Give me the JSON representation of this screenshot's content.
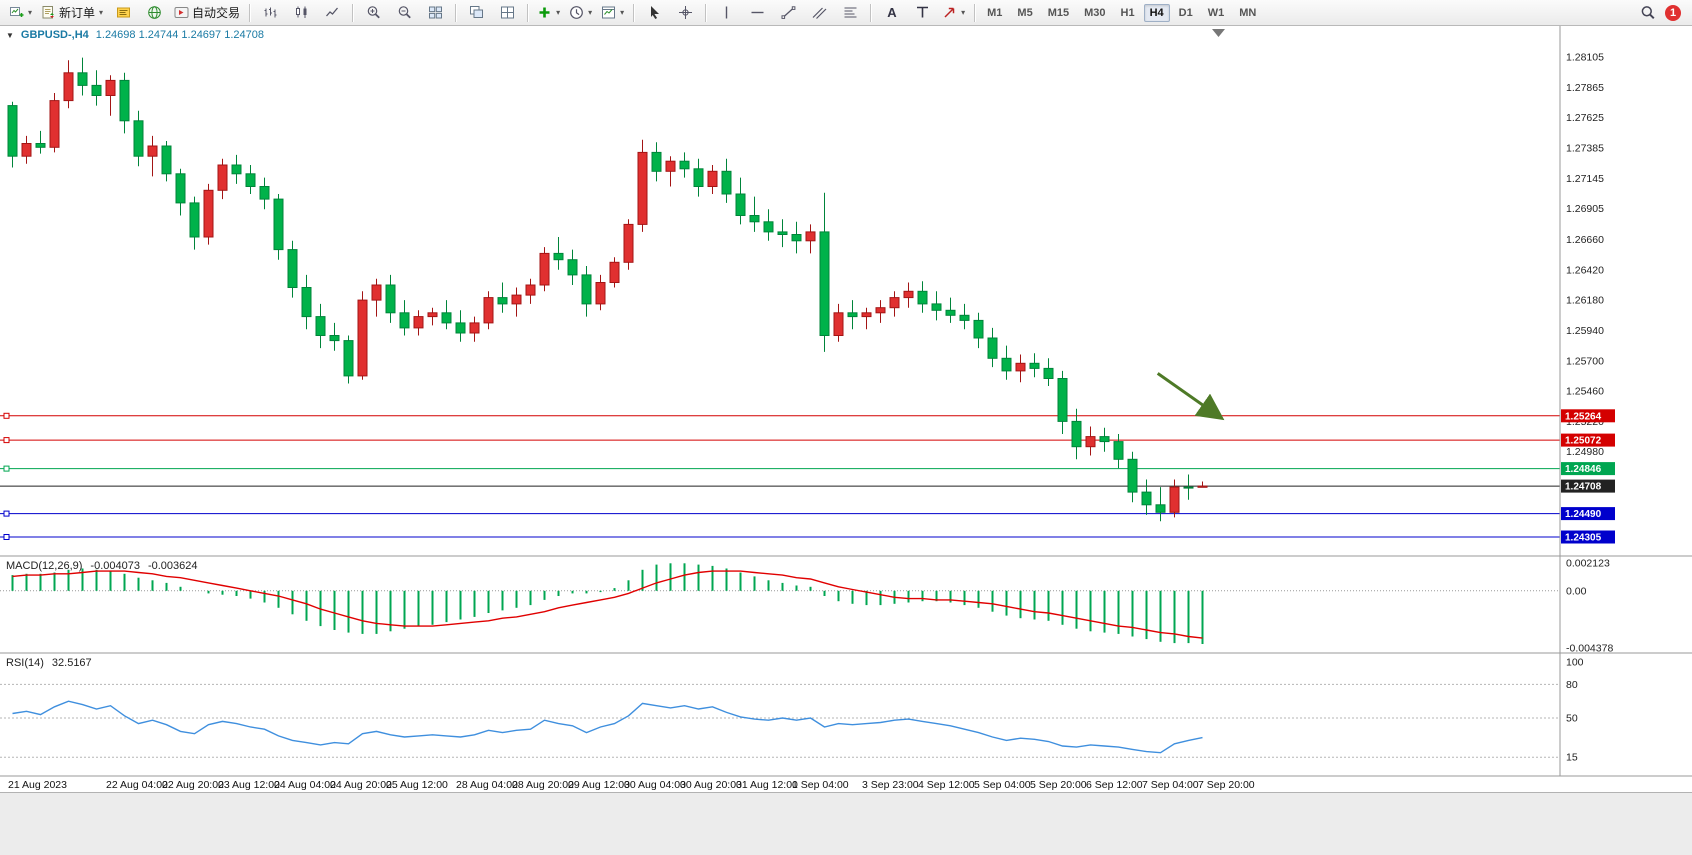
{
  "chart": {
    "symbol_period": "GBPUSD-,H4",
    "ohlc": "1.24698 1.24744 1.24697 1.24708"
  },
  "toolbar": {
    "badge": "1",
    "groups": [
      {
        "name": "trade",
        "items": [
          {
            "name": "new-chart",
            "icon": "chart-plus",
            "dropdown": true
          },
          {
            "name": "new-order",
            "icon": "new-order",
            "label": "新订单",
            "dropdown": true
          },
          {
            "name": "metaeditor",
            "icon": "editor"
          },
          {
            "name": "market-watch",
            "icon": "globe"
          },
          {
            "name": "auto-trading",
            "icon": "autotrade",
            "label": "自动交易"
          }
        ]
      },
      {
        "name": "chart-mode",
        "items": [
          {
            "name": "ohlc-bars-mode",
            "icon": "ohlc"
          },
          {
            "name": "candlestick-mode",
            "icon": "candles"
          },
          {
            "name": "line-chart-mode",
            "icon": "linechart"
          }
        ]
      },
      {
        "name": "zoom",
        "items": [
          {
            "name": "zoom-in",
            "icon": "zoom-in"
          },
          {
            "name": "zoom-out",
            "icon": "zoom-out"
          },
          {
            "name": "arrange-windows",
            "icon": "grid"
          }
        ]
      },
      {
        "name": "windows",
        "items": [
          {
            "name": "cascade-windows",
            "icon": "cascade"
          },
          {
            "name": "tile-windows",
            "icon": "tile"
          }
        ]
      },
      {
        "name": "chart-tools",
        "items": [
          {
            "name": "indicators",
            "icon": "indicator-plus",
            "dropdown": true
          },
          {
            "name": "periods",
            "icon": "clock",
            "dropdown": true
          },
          {
            "name": "templates",
            "icon": "template",
            "dropdown": true
          }
        ]
      },
      {
        "name": "pointer",
        "items": [
          {
            "name": "cursor",
            "icon": "cursor"
          },
          {
            "name": "crosshair",
            "icon": "crosshair"
          }
        ]
      },
      {
        "name": "objects",
        "items": [
          {
            "name": "vertical-line-tool",
            "icon": "vline"
          },
          {
            "name": "horizontal-line-tool",
            "icon": "hline"
          },
          {
            "name": "trendline-tool",
            "icon": "trendline"
          },
          {
            "name": "equidistant-channel-tool",
            "icon": "channel"
          },
          {
            "name": "fibonacci-tool",
            "icon": "fibo"
          }
        ]
      },
      {
        "name": "text-objects",
        "items": [
          {
            "name": "text-tool",
            "icon": "text-a"
          },
          {
            "name": "text-label-tool",
            "icon": "label-t"
          },
          {
            "name": "arrow-objects",
            "icon": "arrow-obj",
            "dropdown": true
          }
        ]
      }
    ],
    "timeframes": [
      {
        "label": "M1"
      },
      {
        "label": "M5"
      },
      {
        "label": "M15"
      },
      {
        "label": "M30"
      },
      {
        "label": "H1"
      },
      {
        "label": "H4",
        "active": true
      },
      {
        "label": "D1"
      },
      {
        "label": "W1"
      },
      {
        "label": "MN"
      }
    ]
  },
  "chart_data": {
    "type": "candlestick",
    "symbol": "GBPUSD",
    "period": "H4",
    "main": {
      "up_color": "#e03030",
      "up_border": "#a31515",
      "down_color": "#00b24a",
      "down_border": "#00843a",
      "axis_labels": [
        "1.28105",
        "1.27865",
        "1.27625",
        "1.27385",
        "1.27145",
        "1.26905",
        "1.26660",
        "1.26420",
        "1.26180",
        "1.25940",
        "1.25700",
        "1.25460",
        "1.25220",
        "1.24980"
      ],
      "hlines": [
        {
          "price": 1.25264,
          "label": "1.25264",
          "color": "#d40000",
          "kind": "resistance"
        },
        {
          "price": 1.25072,
          "label": "1.25072",
          "color": "#d40000",
          "kind": "resistance"
        },
        {
          "price": 1.24846,
          "label": "1.24846",
          "color": "#00a651",
          "kind": "level"
        },
        {
          "price": 1.24708,
          "label": "1.24708",
          "color": "#222222",
          "kind": "bid"
        },
        {
          "price": 1.2449,
          "label": "1.24490",
          "color": "#0000cc",
          "kind": "support"
        },
        {
          "price": 1.24305,
          "label": "1.24305",
          "color": "#0000cc",
          "kind": "support"
        }
      ],
      "candles": [
        [
          1.2772,
          1.2775,
          1.2723,
          1.2732
        ],
        [
          1.2732,
          1.2748,
          1.2726,
          1.2742
        ],
        [
          1.2742,
          1.2752,
          1.2734,
          1.2739
        ],
        [
          1.2739,
          1.2782,
          1.2735,
          1.2776
        ],
        [
          1.2776,
          1.2808,
          1.277,
          1.2798
        ],
        [
          1.2798,
          1.281,
          1.278,
          1.2788
        ],
        [
          1.2788,
          1.28,
          1.2772,
          1.278
        ],
        [
          1.278,
          1.2796,
          1.2764,
          1.2792
        ],
        [
          1.2792,
          1.2798,
          1.275,
          1.276
        ],
        [
          1.276,
          1.2768,
          1.2724,
          1.2732
        ],
        [
          1.2732,
          1.2748,
          1.2716,
          1.274
        ],
        [
          1.274,
          1.2744,
          1.2712,
          1.2718
        ],
        [
          1.2718,
          1.2722,
          1.2685,
          1.2695
        ],
        [
          1.2695,
          1.27,
          1.2658,
          1.2668
        ],
        [
          1.2668,
          1.271,
          1.2662,
          1.2705
        ],
        [
          1.2705,
          1.273,
          1.2698,
          1.2725
        ],
        [
          1.2725,
          1.2733,
          1.271,
          1.2718
        ],
        [
          1.2718,
          1.2725,
          1.2702,
          1.2708
        ],
        [
          1.2708,
          1.2715,
          1.269,
          1.2698
        ],
        [
          1.2698,
          1.2702,
          1.265,
          1.2658
        ],
        [
          1.2658,
          1.2665,
          1.262,
          1.2628
        ],
        [
          1.2628,
          1.2638,
          1.2595,
          1.2605
        ],
        [
          1.2605,
          1.2615,
          1.258,
          1.259
        ],
        [
          1.259,
          1.26,
          1.2578,
          1.2586
        ],
        [
          1.2586,
          1.259,
          1.2552,
          1.2558
        ],
        [
          1.2558,
          1.2625,
          1.2555,
          1.2618
        ],
        [
          1.2618,
          1.2635,
          1.2605,
          1.263
        ],
        [
          1.263,
          1.2638,
          1.26,
          1.2608
        ],
        [
          1.2608,
          1.2618,
          1.259,
          1.2596
        ],
        [
          1.2596,
          1.261,
          1.259,
          1.2605
        ],
        [
          1.2605,
          1.2612,
          1.2598,
          1.2608
        ],
        [
          1.2608,
          1.2618,
          1.2595,
          1.26
        ],
        [
          1.26,
          1.261,
          1.2585,
          1.2592
        ],
        [
          1.2592,
          1.2605,
          1.2585,
          1.26
        ],
        [
          1.26,
          1.2625,
          1.2595,
          1.262
        ],
        [
          1.262,
          1.2632,
          1.2608,
          1.2615
        ],
        [
          1.2615,
          1.2628,
          1.2605,
          1.2622
        ],
        [
          1.2622,
          1.2635,
          1.2615,
          1.263
        ],
        [
          1.263,
          1.266,
          1.2625,
          1.2655
        ],
        [
          1.2655,
          1.2668,
          1.2642,
          1.265
        ],
        [
          1.265,
          1.2658,
          1.263,
          1.2638
        ],
        [
          1.2638,
          1.2645,
          1.2605,
          1.2615
        ],
        [
          1.2615,
          1.2638,
          1.261,
          1.2632
        ],
        [
          1.2632,
          1.2652,
          1.2628,
          1.2648
        ],
        [
          1.2648,
          1.2682,
          1.2642,
          1.2678
        ],
        [
          1.2678,
          1.2745,
          1.2672,
          1.2735
        ],
        [
          1.2735,
          1.2743,
          1.2712,
          1.272
        ],
        [
          1.272,
          1.2732,
          1.2708,
          1.2728
        ],
        [
          1.2728,
          1.2735,
          1.2715,
          1.2722
        ],
        [
          1.2722,
          1.273,
          1.27,
          1.2708
        ],
        [
          1.2708,
          1.2725,
          1.2702,
          1.272
        ],
        [
          1.272,
          1.273,
          1.2695,
          1.2702
        ],
        [
          1.2702,
          1.2715,
          1.2678,
          1.2685
        ],
        [
          1.2685,
          1.27,
          1.2672,
          1.268
        ],
        [
          1.268,
          1.269,
          1.2665,
          1.2672
        ],
        [
          1.2672,
          1.2682,
          1.266,
          1.267
        ],
        [
          1.267,
          1.268,
          1.2655,
          1.2665
        ],
        [
          1.2665,
          1.2678,
          1.2655,
          1.2672
        ],
        [
          1.2672,
          1.2703,
          1.2577,
          1.259
        ],
        [
          1.259,
          1.2615,
          1.2585,
          1.2608
        ],
        [
          1.2608,
          1.2618,
          1.2595,
          1.2605
        ],
        [
          1.2605,
          1.2612,
          1.2595,
          1.2608
        ],
        [
          1.2608,
          1.2618,
          1.26,
          1.2612
        ],
        [
          1.2612,
          1.2625,
          1.2605,
          1.262
        ],
        [
          1.262,
          1.2632,
          1.2612,
          1.2625
        ],
        [
          1.2625,
          1.2633,
          1.2608,
          1.2615
        ],
        [
          1.2615,
          1.2625,
          1.2602,
          1.261
        ],
        [
          1.261,
          1.262,
          1.26,
          1.2606
        ],
        [
          1.2606,
          1.2615,
          1.2595,
          1.2602
        ],
        [
          1.2602,
          1.2608,
          1.258,
          1.2588
        ],
        [
          1.2588,
          1.2596,
          1.2565,
          1.2572
        ],
        [
          1.2572,
          1.2582,
          1.2555,
          1.2562
        ],
        [
          1.2562,
          1.2575,
          1.2553,
          1.2568
        ],
        [
          1.2568,
          1.2576,
          1.2557,
          1.2564
        ],
        [
          1.2564,
          1.2572,
          1.255,
          1.2556
        ],
        [
          1.2556,
          1.2562,
          1.2512,
          1.2522
        ],
        [
          1.2522,
          1.2532,
          1.2492,
          1.2502
        ],
        [
          1.2502,
          1.2518,
          1.2495,
          1.251
        ],
        [
          1.251,
          1.2517,
          1.2498,
          1.2506
        ],
        [
          1.2506,
          1.2512,
          1.2485,
          1.2492
        ],
        [
          1.2492,
          1.2498,
          1.2458,
          1.2466
        ],
        [
          1.2466,
          1.2476,
          1.2448,
          1.2456
        ],
        [
          1.2456,
          1.247,
          1.2443,
          1.245
        ],
        [
          1.245,
          1.2476,
          1.2446,
          1.247
        ],
        [
          1.247,
          1.248,
          1.246,
          1.24698
        ],
        [
          1.24698,
          1.24744,
          1.24697,
          1.24708
        ]
      ]
    },
    "x_labels": [
      {
        "bar": 0,
        "label": "21 Aug 2023"
      },
      {
        "bar": 7,
        "label": "22 Aug 04:00"
      },
      {
        "bar": 11,
        "label": "22 Aug 20:00"
      },
      {
        "bar": 15,
        "label": "23 Aug 12:00"
      },
      {
        "bar": 19,
        "label": "24 Aug 04:00"
      },
      {
        "bar": 23,
        "label": "24 Aug 20:00"
      },
      {
        "bar": 27,
        "label": "25 Aug 12:00"
      },
      {
        "bar": 32,
        "label": "28 Aug 04:00"
      },
      {
        "bar": 36,
        "label": "28 Aug 20:00"
      },
      {
        "bar": 40,
        "label": "29 Aug 12:00"
      },
      {
        "bar": 44,
        "label": "30 Aug 04:00"
      },
      {
        "bar": 48,
        "label": "30 Aug 20:00"
      },
      {
        "bar": 52,
        "label": "31 Aug 12:00"
      },
      {
        "bar": 56,
        "label": "1 Sep 04:00"
      },
      {
        "bar": 61,
        "label": "3 Sep 23:00"
      },
      {
        "bar": 65,
        "label": "4 Sep 12:00"
      },
      {
        "bar": 69,
        "label": "5 Sep 04:00"
      },
      {
        "bar": 73,
        "label": "5 Sep 20:00"
      },
      {
        "bar": 77,
        "label": "6 Sep 12:00"
      },
      {
        "bar": 81,
        "label": "7 Sep 04:00"
      },
      {
        "bar": 85,
        "label": "7 Sep 20:00"
      }
    ],
    "macd": {
      "name": "MACD(12,26,9)",
      "value_main": "-0.004073",
      "value_signal": "-0.003624",
      "color_hist": "#00a651",
      "color_signal": "#e00000",
      "axis": [
        {
          "v": 0.002123,
          "label": "0.002123"
        },
        {
          "v": 0,
          "label": "0.00"
        },
        {
          "v": -0.004378,
          "label": "-0.004378"
        }
      ],
      "hist": [
        0.0012,
        0.0013,
        0.0013,
        0.0014,
        0.0016,
        0.0017,
        0.0016,
        0.0015,
        0.0013,
        0.001,
        0.0008,
        0.0006,
        0.0003,
        0.0,
        -0.0002,
        -0.0003,
        -0.0004,
        -0.0006,
        -0.0009,
        -0.0013,
        -0.0018,
        -0.0023,
        -0.0027,
        -0.003,
        -0.0032,
        -0.0033,
        -0.0033,
        -0.0031,
        -0.0029,
        -0.0027,
        -0.0026,
        -0.0024,
        -0.0022,
        -0.002,
        -0.0017,
        -0.0015,
        -0.0013,
        -0.0011,
        -0.0007,
        -0.0004,
        -0.0002,
        -0.0002,
        -0.0001,
        0.0002,
        0.0008,
        0.0016,
        0.002,
        0.0021,
        0.0021,
        0.002,
        0.0019,
        0.0017,
        0.0014,
        0.0011,
        0.0008,
        0.0006,
        0.0004,
        0.0003,
        -0.0004,
        -0.0008,
        -0.001,
        -0.0011,
        -0.0011,
        -0.001,
        -0.0009,
        -0.0008,
        -0.0008,
        -0.0009,
        -0.0011,
        -0.0013,
        -0.0016,
        -0.0019,
        -0.0021,
        -0.0022,
        -0.0023,
        -0.0026,
        -0.0029,
        -0.0031,
        -0.0032,
        -0.0033,
        -0.0035,
        -0.0037,
        -0.0039,
        -0.004,
        -0.004,
        -0.004073
      ],
      "signal": [
        0.0011,
        0.0012,
        0.0012,
        0.0013,
        0.0013,
        0.0014,
        0.0015,
        0.0015,
        0.0015,
        0.0014,
        0.0013,
        0.0011,
        0.001,
        0.0008,
        0.0006,
        0.0004,
        0.0002,
        0.0,
        -0.0002,
        -0.0004,
        -0.0007,
        -0.001,
        -0.0014,
        -0.0017,
        -0.002,
        -0.0023,
        -0.0025,
        -0.0026,
        -0.0027,
        -0.0027,
        -0.0027,
        -0.0026,
        -0.0025,
        -0.0024,
        -0.0023,
        -0.0021,
        -0.002,
        -0.0018,
        -0.0016,
        -0.0013,
        -0.0011,
        -0.0009,
        -0.0007,
        -0.0005,
        -0.0002,
        0.0002,
        0.0006,
        0.0009,
        0.0012,
        0.0014,
        0.0015,
        0.0015,
        0.0015,
        0.0014,
        0.0013,
        0.0012,
        0.001,
        0.0009,
        0.0006,
        0.0003,
        0.0001,
        -0.0001,
        -0.0003,
        -0.0005,
        -0.0006,
        -0.0006,
        -0.0007,
        -0.0007,
        -0.0008,
        -0.0009,
        -0.001,
        -0.0012,
        -0.0014,
        -0.0016,
        -0.0017,
        -0.0019,
        -0.0021,
        -0.0023,
        -0.0025,
        -0.0027,
        -0.0028,
        -0.003,
        -0.0032,
        -0.0033,
        -0.0035,
        -0.003624
      ]
    },
    "rsi": {
      "name": "RSI(14)",
      "value": "32.5167",
      "color": "#3f8fde",
      "levels": [
        80,
        50,
        15
      ],
      "axis": [
        {
          "v": 100,
          "label": "100"
        },
        {
          "v": 80,
          "label": "80"
        },
        {
          "v": 50,
          "label": "50"
        },
        {
          "v": 15,
          "label": "15"
        }
      ],
      "values": [
        54,
        56,
        53,
        60,
        65,
        62,
        58,
        61,
        52,
        45,
        48,
        44,
        38,
        36,
        44,
        47,
        45,
        42,
        40,
        34,
        30,
        28,
        26,
        28,
        27,
        36,
        38,
        35,
        33,
        34,
        35,
        34,
        33,
        35,
        39,
        37,
        39,
        40,
        48,
        45,
        43,
        37,
        42,
        45,
        52,
        63,
        61,
        59,
        61,
        58,
        60,
        55,
        51,
        49,
        48,
        50,
        48,
        50,
        42,
        45,
        44,
        45,
        46,
        48,
        49,
        47,
        45,
        43,
        40,
        37,
        33,
        30,
        32,
        31,
        29,
        25,
        24,
        26,
        25,
        24,
        22,
        20,
        19,
        27,
        30,
        32.5
      ]
    },
    "annotation": {
      "type": "arrow",
      "direction": "down-right",
      "color": "#4e7a27",
      "from_bar": 81.8,
      "from_price": 1.256,
      "to_bar": 86.3,
      "to_price": 1.2525
    }
  }
}
